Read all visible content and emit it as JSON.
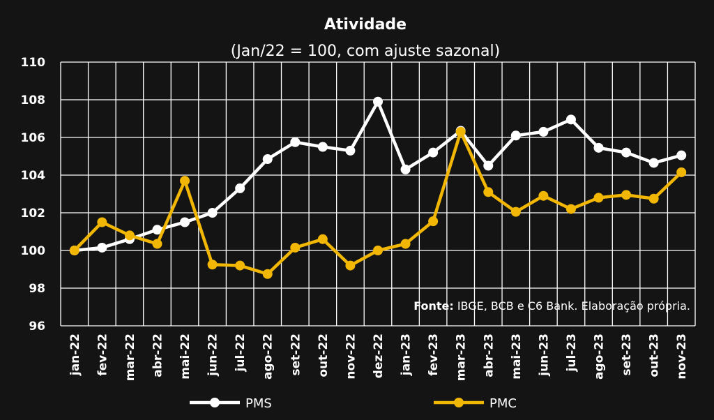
{
  "chart_data": {
    "type": "line",
    "title": "Atividade",
    "subtitle": "(Jan/22 = 100, com ajuste sazonal)",
    "xlabel": "",
    "ylabel": "",
    "ylim": [
      96,
      110
    ],
    "yticks": [
      "96",
      "98",
      "100",
      "102",
      "104",
      "106",
      "108",
      "110"
    ],
    "grid": true,
    "legend_position": "bottom",
    "categories": [
      "jan-22",
      "fev-22",
      "mar-22",
      "abr-22",
      "mai-22",
      "jun-22",
      "jul-22",
      "ago-22",
      "set-22",
      "out-22",
      "nov-22",
      "dez-22",
      "jan-23",
      "fev-23",
      "mar-23",
      "abr-23",
      "mai-23",
      "jun-23",
      "jul-23",
      "ago-23",
      "set-23",
      "out-23",
      "nov-23"
    ],
    "series": [
      {
        "name": "PMS",
        "color": "#ffffff",
        "values": [
          100.0,
          100.15,
          100.6,
          101.1,
          101.5,
          102.0,
          103.3,
          104.85,
          105.75,
          105.5,
          105.3,
          107.9,
          104.3,
          105.2,
          106.35,
          104.5,
          106.1,
          106.3,
          106.95,
          105.45,
          105.2,
          104.65,
          105.05
        ]
      },
      {
        "name": "PMC",
        "color": "#f2b705",
        "values": [
          100.0,
          101.5,
          100.8,
          100.35,
          103.7,
          99.25,
          99.2,
          98.75,
          100.15,
          100.6,
          99.2,
          100.0,
          100.35,
          101.55,
          106.3,
          103.1,
          102.05,
          102.9,
          102.2,
          102.8,
          102.95,
          102.75,
          104.15
        ]
      }
    ],
    "annotation": {
      "bold": "Fonte:",
      "text": " IBGE, BCB e C6 Bank. Elaboração própria."
    }
  }
}
